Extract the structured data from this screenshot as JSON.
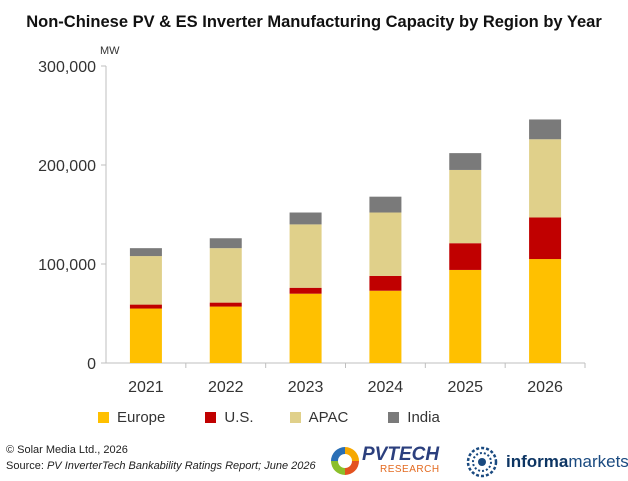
{
  "title": "Non-Chinese PV & ES Inverter Manufacturing Capacity by Region by Year",
  "footer": {
    "copyright": "© Solar Media Ltd., 2026",
    "source_prefix": "Source: ",
    "source_italic": "PV InverterTech Bankability Ratings Report; June 2026"
  },
  "logos": {
    "pvtech_word": "PVTECH",
    "pvtech_sub": "RESEARCH",
    "informa_bold": "informa",
    "informa_light": "markets"
  },
  "chart_data": {
    "type": "bar",
    "stacked": true,
    "title": "Non-Chinese PV & ES Inverter Manufacturing Capacity by Region by Year",
    "ylabel": "MW",
    "xlabel": "",
    "ylim": [
      0,
      300000
    ],
    "yticks": [
      0,
      100000,
      200000,
      300000
    ],
    "ytick_labels": [
      "0",
      "100,000",
      "200,000",
      "300,000"
    ],
    "grid": false,
    "legend_position": "bottom",
    "categories": [
      "2021",
      "2022",
      "2023",
      "2024",
      "2025",
      "2026"
    ],
    "series": [
      {
        "name": "Europe",
        "color": "#ffc000",
        "values": [
          55000,
          57000,
          70000,
          73000,
          94000,
          105000
        ]
      },
      {
        "name": "U.S.",
        "color": "#c00000",
        "values": [
          4000,
          4000,
          6000,
          15000,
          27000,
          42000
        ]
      },
      {
        "name": "APAC",
        "color": "#e0d08a",
        "values": [
          49000,
          55000,
          64000,
          64000,
          74000,
          79000
        ]
      },
      {
        "name": "India",
        "color": "#7a7a7a",
        "values": [
          8000,
          10000,
          12000,
          16000,
          17000,
          20000
        ]
      }
    ]
  }
}
